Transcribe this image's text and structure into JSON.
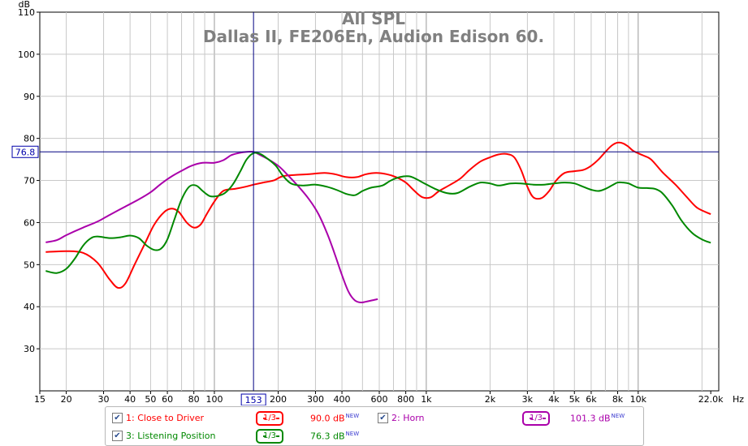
{
  "chart_data": {
    "type": "line",
    "title": "All SPL",
    "subtitle": "Dallas II, FE206En, Audion Edison 60.",
    "y_unit": "dB",
    "x_unit": "Hz",
    "xlim": [
      15,
      24000
    ],
    "ylim": [
      20,
      110
    ],
    "x_scale": "log",
    "grid": true,
    "y_ticks": [
      "30",
      "40",
      "50",
      "60",
      "70",
      "80",
      "90",
      "100",
      "110"
    ],
    "x_ticks": [
      {
        "v": 15,
        "label": "15"
      },
      {
        "v": 20,
        "label": "20"
      },
      {
        "v": 30,
        "label": "30"
      },
      {
        "v": 40,
        "label": "40"
      },
      {
        "v": 50,
        "label": "50"
      },
      {
        "v": 60,
        "label": "60"
      },
      {
        "v": 80,
        "label": "80"
      },
      {
        "v": 100,
        "label": "100"
      },
      {
        "v": 200,
        "label": "200"
      },
      {
        "v": 300,
        "label": "300"
      },
      {
        "v": 400,
        "label": "400"
      },
      {
        "v": 600,
        "label": "600"
      },
      {
        "v": 800,
        "label": "800"
      },
      {
        "v": 1000,
        "label": "1k"
      },
      {
        "v": 2000,
        "label": "2k"
      },
      {
        "v": 3000,
        "label": "3k"
      },
      {
        "v": 4000,
        "label": "4k"
      },
      {
        "v": 5000,
        "label": "5k"
      },
      {
        "v": 6000,
        "label": "6k"
      },
      {
        "v": 8000,
        "label": "8k"
      },
      {
        "v": 10000,
        "label": "10k"
      },
      {
        "v": 22000,
        "label": "22.0k"
      }
    ],
    "cursor": {
      "x": 153,
      "y": 76.8,
      "x_label": "153",
      "y_label": "76.8"
    },
    "series": [
      {
        "name": "1: Close to Driver",
        "color": "#ff0000",
        "points": [
          [
            16,
            53
          ],
          [
            20,
            53.2
          ],
          [
            24,
            52.8
          ],
          [
            28,
            50.5
          ],
          [
            32,
            46.5
          ],
          [
            35,
            44.5
          ],
          [
            38,
            45.5
          ],
          [
            42,
            50
          ],
          [
            47,
            55
          ],
          [
            52,
            59.5
          ],
          [
            58,
            62.5
          ],
          [
            63,
            63.3
          ],
          [
            68,
            62.5
          ],
          [
            74,
            60
          ],
          [
            80,
            58.8
          ],
          [
            86,
            59.5
          ],
          [
            92,
            62
          ],
          [
            100,
            65
          ],
          [
            110,
            67.5
          ],
          [
            125,
            68
          ],
          [
            140,
            68.5
          ],
          [
            153,
            69
          ],
          [
            170,
            69.5
          ],
          [
            190,
            70
          ],
          [
            210,
            71
          ],
          [
            240,
            71.3
          ],
          [
            280,
            71.5
          ],
          [
            330,
            71.8
          ],
          [
            370,
            71.5
          ],
          [
            420,
            70.8
          ],
          [
            470,
            70.8
          ],
          [
            520,
            71.5
          ],
          [
            580,
            71.8
          ],
          [
            650,
            71.5
          ],
          [
            720,
            70.8
          ],
          [
            800,
            69.5
          ],
          [
            880,
            67.5
          ],
          [
            960,
            66
          ],
          [
            1050,
            66
          ],
          [
            1150,
            67.5
          ],
          [
            1300,
            69
          ],
          [
            1450,
            70.5
          ],
          [
            1600,
            72.5
          ],
          [
            1800,
            74.5
          ],
          [
            2000,
            75.5
          ],
          [
            2200,
            76.2
          ],
          [
            2400,
            76.3
          ],
          [
            2600,
            75.5
          ],
          [
            2800,
            72.5
          ],
          [
            3000,
            68.5
          ],
          [
            3200,
            66
          ],
          [
            3500,
            65.8
          ],
          [
            3800,
            67.5
          ],
          [
            4100,
            70
          ],
          [
            4500,
            71.8
          ],
          [
            5000,
            72.2
          ],
          [
            5500,
            72.5
          ],
          [
            6000,
            73.5
          ],
          [
            6500,
            75
          ],
          [
            7000,
            76.8
          ],
          [
            7500,
            78.3
          ],
          [
            8000,
            79
          ],
          [
            8500,
            78.8
          ],
          [
            9000,
            78
          ],
          [
            9500,
            77
          ],
          [
            10500,
            76
          ],
          [
            11500,
            75
          ],
          [
            13000,
            72
          ],
          [
            15000,
            69
          ],
          [
            17000,
            66
          ],
          [
            19000,
            63.5
          ],
          [
            22000,
            62
          ]
        ]
      },
      {
        "name": "2: Horn",
        "color": "#aa00aa",
        "points": [
          [
            16,
            55.3
          ],
          [
            18,
            55.8
          ],
          [
            20,
            57
          ],
          [
            24,
            58.8
          ],
          [
            28,
            60.2
          ],
          [
            32,
            61.8
          ],
          [
            38,
            63.8
          ],
          [
            44,
            65.5
          ],
          [
            50,
            67.2
          ],
          [
            56,
            69.2
          ],
          [
            63,
            71
          ],
          [
            70,
            72.3
          ],
          [
            78,
            73.5
          ],
          [
            88,
            74.2
          ],
          [
            100,
            74.2
          ],
          [
            110,
            74.8
          ],
          [
            120,
            76
          ],
          [
            130,
            76.5
          ],
          [
            142,
            76.8
          ],
          [
            153,
            76.8
          ],
          [
            165,
            76
          ],
          [
            180,
            75
          ],
          [
            200,
            73.5
          ],
          [
            220,
            71.5
          ],
          [
            250,
            68.5
          ],
          [
            280,
            65.5
          ],
          [
            310,
            62
          ],
          [
            340,
            57.5
          ],
          [
            370,
            52.5
          ],
          [
            400,
            47.5
          ],
          [
            430,
            43.5
          ],
          [
            460,
            41.5
          ],
          [
            490,
            41
          ],
          [
            520,
            41.2
          ],
          [
            555,
            41.5
          ],
          [
            590,
            41.8
          ]
        ]
      },
      {
        "name": "3: Listening Position",
        "color": "#008800",
        "points": [
          [
            16,
            48.5
          ],
          [
            18,
            48
          ],
          [
            20,
            49
          ],
          [
            22,
            51.5
          ],
          [
            24,
            54.5
          ],
          [
            26,
            56.2
          ],
          [
            28,
            56.7
          ],
          [
            32,
            56.3
          ],
          [
            36,
            56.5
          ],
          [
            40,
            56.9
          ],
          [
            44,
            56.3
          ],
          [
            48,
            54.5
          ],
          [
            52,
            53.5
          ],
          [
            56,
            53.8
          ],
          [
            60,
            56
          ],
          [
            65,
            61
          ],
          [
            70,
            65.5
          ],
          [
            76,
            68.5
          ],
          [
            82,
            68.8
          ],
          [
            88,
            67.5
          ],
          [
            95,
            66.3
          ],
          [
            103,
            66.3
          ],
          [
            112,
            67
          ],
          [
            122,
            69
          ],
          [
            132,
            72
          ],
          [
            142,
            75
          ],
          [
            153,
            76.5
          ],
          [
            165,
            76.3
          ],
          [
            180,
            75
          ],
          [
            195,
            73.5
          ],
          [
            210,
            71.2
          ],
          [
            230,
            69.3
          ],
          [
            260,
            68.8
          ],
          [
            300,
            69
          ],
          [
            340,
            68.5
          ],
          [
            380,
            67.7
          ],
          [
            420,
            66.8
          ],
          [
            460,
            66.5
          ],
          [
            500,
            67.5
          ],
          [
            550,
            68.3
          ],
          [
            620,
            68.8
          ],
          [
            680,
            70
          ],
          [
            750,
            70.8
          ],
          [
            830,
            71
          ],
          [
            900,
            70.3
          ],
          [
            980,
            69.3
          ],
          [
            1100,
            68
          ],
          [
            1250,
            67
          ],
          [
            1400,
            67
          ],
          [
            1600,
            68.5
          ],
          [
            1800,
            69.5
          ],
          [
            2000,
            69.3
          ],
          [
            2200,
            68.8
          ],
          [
            2500,
            69.3
          ],
          [
            2800,
            69.3
          ],
          [
            3200,
            69
          ],
          [
            3600,
            69
          ],
          [
            4000,
            69.3
          ],
          [
            4500,
            69.5
          ],
          [
            5000,
            69.3
          ],
          [
            5500,
            68.5
          ],
          [
            6000,
            67.8
          ],
          [
            6500,
            67.5
          ],
          [
            7000,
            68
          ],
          [
            7500,
            68.8
          ],
          [
            8000,
            69.5
          ],
          [
            8500,
            69.5
          ],
          [
            9000,
            69.3
          ],
          [
            10000,
            68.3
          ],
          [
            11000,
            68.2
          ],
          [
            12000,
            68
          ],
          [
            13000,
            67
          ],
          [
            14500,
            64
          ],
          [
            16000,
            60.5
          ],
          [
            18000,
            57.5
          ],
          [
            20000,
            56
          ],
          [
            22000,
            55.2
          ]
        ]
      }
    ]
  },
  "legend": [
    {
      "id": "close",
      "label": "1: Close to Driver",
      "smoothing": "1/3",
      "level": "90.0 dB",
      "badge": "NEW",
      "color": "#ff0000",
      "checked": "✔"
    },
    {
      "id": "horn",
      "label": "2: Horn",
      "smoothing": "1/3",
      "level": "101.3 dB",
      "badge": "NEW",
      "color": "#aa00aa",
      "checked": "✔"
    },
    {
      "id": "listen",
      "label": "3: Listening Position",
      "smoothing": "1/3",
      "level": "76.3 dB",
      "badge": "NEW",
      "color": "#008800",
      "checked": "✔"
    }
  ]
}
